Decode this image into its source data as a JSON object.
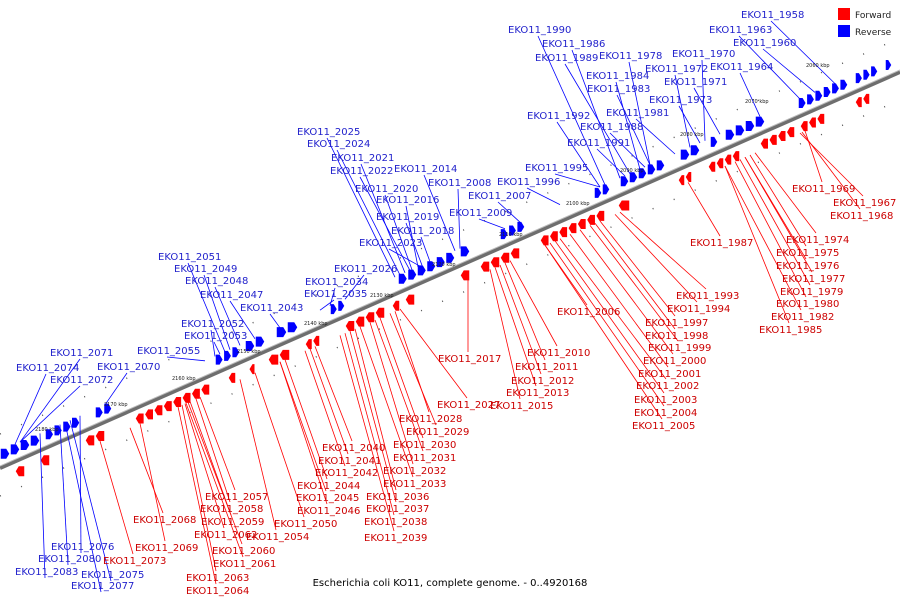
{
  "caption": "Escherichia coli KO11, complete genome. - 0..4920168",
  "legend": [
    {
      "label": "Forward",
      "color": "#ff0000"
    },
    {
      "label": "Reverse",
      "color": "#0000ff"
    }
  ],
  "colors": {
    "forward": "#ff0000",
    "reverse": "#0000ff",
    "axis": "#777777"
  },
  "kbp_marks": [
    "2060 kbp",
    "2070 kbp",
    "2080 kbp",
    "2090 kbp",
    "2100 kbp",
    "2110 kbp",
    "2120 kbp",
    "2130 kbp",
    "2140 kbp",
    "2150 kbp",
    "2160 kbp",
    "2170 kbp",
    "2180 kbp"
  ],
  "reverse_labels": [
    "EKO11_1958",
    "EKO11_1963",
    "EKO11_1960",
    "EKO11_1990",
    "EKO11_1986",
    "EKO11_1989",
    "EKO11_1978",
    "EKO11_1970",
    "EKO11_1972",
    "EKO11_1964",
    "EKO11_1984",
    "EKO11_1971",
    "EKO11_1983",
    "EKO11_1981",
    "EKO11_1973",
    "EKO11_1992",
    "EKO11_1988",
    "EKO11_1991",
    "EKO11_2025",
    "EKO11_2024",
    "EKO11_2021",
    "EKO11_2022",
    "EKO11_2014",
    "EKO11_2008",
    "EKO11_2020",
    "EKO11_2016",
    "EKO11_2019",
    "EKO11_2018",
    "EKO11_2023",
    "EKO11_1995",
    "EKO11_1996",
    "EKO11_2007",
    "EKO11_2009",
    "EKO11_2051",
    "EKO11_2049",
    "EKO11_2048",
    "EKO11_2047",
    "EKO11_2026",
    "EKO11_2034",
    "EKO11_2035",
    "EKO11_2043",
    "EKO11_2052",
    "EKO11_2053",
    "EKO11_2055",
    "EKO11_2071",
    "EKO11_2074",
    "EKO11_2072",
    "EKO11_2070",
    "EKO11_2076",
    "EKO11_2080",
    "EKO11_2083",
    "EKO11_2075",
    "EKO11_2077"
  ],
  "forward_labels": [
    "EKO11_1969",
    "EKO11_1967",
    "EKO11_1968",
    "EKO11_1974",
    "EKO11_1975",
    "EKO11_1976",
    "EKO11_1977",
    "EKO11_1979",
    "EKO11_1980",
    "EKO11_1982",
    "EKO11_1985",
    "EKO11_1987",
    "EKO11_1993",
    "EKO11_1994",
    "EKO11_1997",
    "EKO11_1998",
    "EKO11_1999",
    "EKO11_2000",
    "EKO11_2001",
    "EKO11_2002",
    "EKO11_2003",
    "EKO11_2004",
    "EKO11_2005",
    "EKO11_2006",
    "EKO11_2010",
    "EKO11_2011",
    "EKO11_2012",
    "EKO11_2013",
    "EKO11_2015",
    "EKO11_2017",
    "EKO11_2027",
    "EKO11_2028",
    "EKO11_2029",
    "EKO11_2030",
    "EKO11_2031",
    "EKO11_2032",
    "EKO11_2033",
    "EKO11_2036",
    "EKO11_2037",
    "EKO11_2038",
    "EKO11_2039",
    "EKO11_2040",
    "EKO11_2041",
    "EKO11_2042",
    "EKO11_2044",
    "EKO11_2045",
    "EKO11_2046",
    "EKO11_2050",
    "EKO11_2054",
    "EKO11_2057",
    "EKO11_2058",
    "EKO11_2059",
    "EKO11_2060",
    "EKO11_2061",
    "EKO11_2062",
    "EKO11_2063",
    "EKO11_2064",
    "EKO11_2068",
    "EKO11_2069",
    "EKO11_2073"
  ]
}
